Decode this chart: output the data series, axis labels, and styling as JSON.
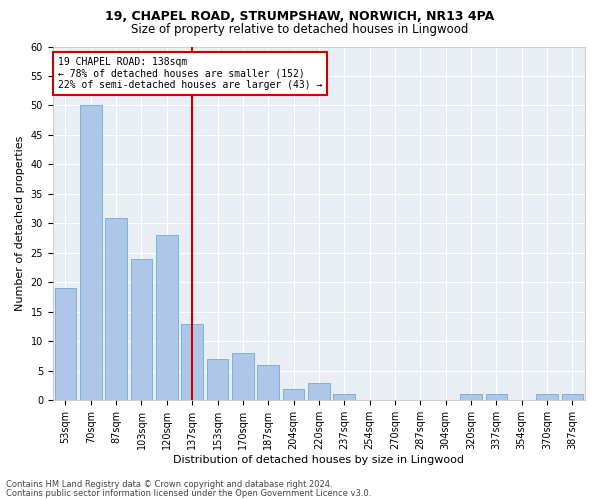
{
  "title1": "19, CHAPEL ROAD, STRUMPSHAW, NORWICH, NR13 4PA",
  "title2": "Size of property relative to detached houses in Lingwood",
  "xlabel": "Distribution of detached houses by size in Lingwood",
  "ylabel": "Number of detached properties",
  "bar_labels": [
    "53sqm",
    "70sqm",
    "87sqm",
    "103sqm",
    "120sqm",
    "137sqm",
    "153sqm",
    "170sqm",
    "187sqm",
    "204sqm",
    "220sqm",
    "237sqm",
    "254sqm",
    "270sqm",
    "287sqm",
    "304sqm",
    "320sqm",
    "337sqm",
    "354sqm",
    "370sqm",
    "387sqm"
  ],
  "bar_values": [
    19,
    50,
    31,
    24,
    28,
    13,
    7,
    8,
    6,
    2,
    3,
    1,
    0,
    0,
    0,
    0,
    1,
    1,
    0,
    1,
    1
  ],
  "bar_color": "#aec6e8",
  "bar_edge_color": "#6baed6",
  "vline_index": 5,
  "vline_color": "#cc0000",
  "annotation_line1": "19 CHAPEL ROAD: 138sqm",
  "annotation_line2": "← 78% of detached houses are smaller (152)",
  "annotation_line3": "22% of semi-detached houses are larger (43) →",
  "annotation_box_color": "#cc0000",
  "ylim": [
    0,
    60
  ],
  "yticks": [
    0,
    5,
    10,
    15,
    20,
    25,
    30,
    35,
    40,
    45,
    50,
    55,
    60
  ],
  "bg_color": "#e8eef4",
  "grid_color": "#ffffff",
  "footnote1": "Contains HM Land Registry data © Crown copyright and database right 2024.",
  "footnote2": "Contains public sector information licensed under the Open Government Licence v3.0.",
  "title1_fontsize": 9,
  "title2_fontsize": 8.5,
  "xlabel_fontsize": 8,
  "ylabel_fontsize": 8,
  "tick_fontsize": 7,
  "annot_fontsize": 7,
  "footnote_fontsize": 6
}
